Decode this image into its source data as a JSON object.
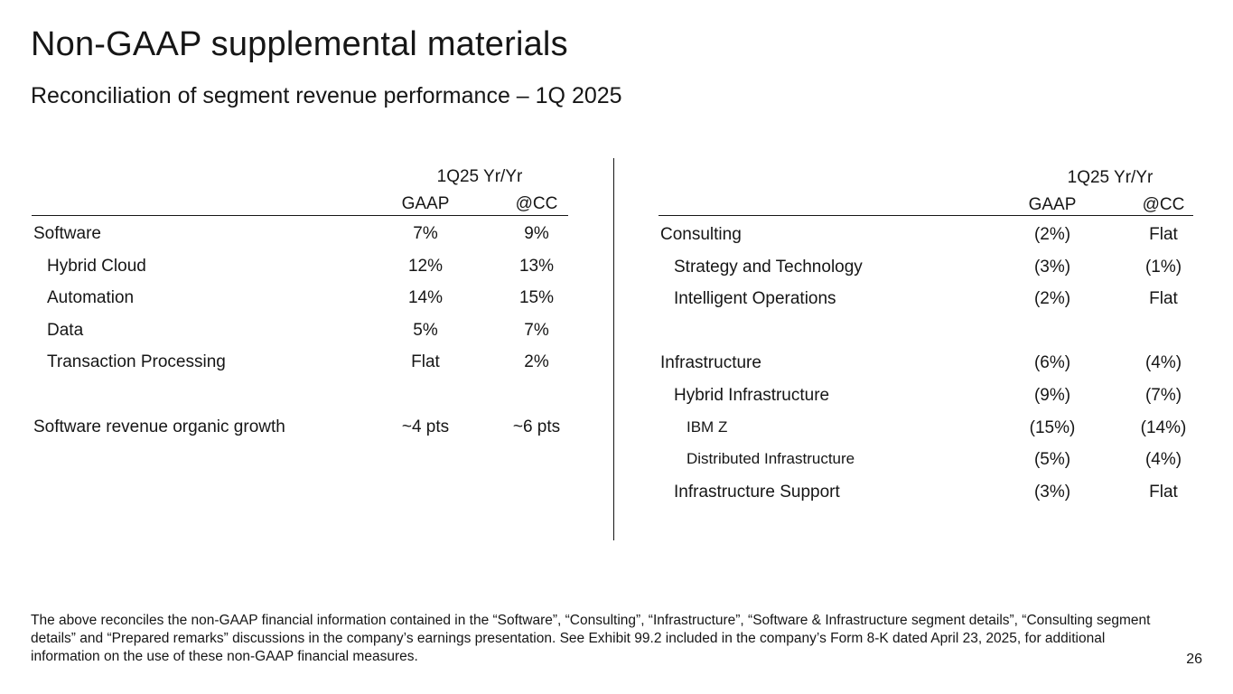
{
  "title": "Non-GAAP supplemental materials",
  "subtitle": "Reconciliation of segment revenue performance – 1Q 2025",
  "left_table": {
    "header_group": "1Q25 Yr/Yr",
    "col1": "GAAP",
    "col2": "@CC",
    "rows": [
      {
        "label": "Software",
        "gaap": "7%",
        "cc": "9%"
      },
      {
        "label": "Hybrid Cloud",
        "gaap": "12%",
        "cc": "13%"
      },
      {
        "label": "Automation",
        "gaap": "14%",
        "cc": "15%"
      },
      {
        "label": "Data",
        "gaap": "5%",
        "cc": "7%"
      },
      {
        "label": "Transaction Processing",
        "gaap": "Flat",
        "cc": "2%"
      },
      {
        "label": "Software revenue organic growth",
        "gaap": "~4 pts",
        "cc": "~6 pts"
      }
    ]
  },
  "right_table": {
    "header_group": "1Q25 Yr/Yr",
    "col1": "GAAP",
    "col2": "@CC",
    "rows": [
      {
        "label": "Consulting",
        "gaap": "(2%)",
        "cc": "Flat"
      },
      {
        "label": "Strategy and Technology",
        "gaap": "(3%)",
        "cc": "(1%)"
      },
      {
        "label": "Intelligent Operations",
        "gaap": "(2%)",
        "cc": "Flat"
      },
      {
        "label": "Infrastructure",
        "gaap": "(6%)",
        "cc": "(4%)"
      },
      {
        "label": "Hybrid Infrastructure",
        "gaap": "(9%)",
        "cc": "(7%)"
      },
      {
        "label": "IBM Z",
        "gaap": "(15%)",
        "cc": "(14%)"
      },
      {
        "label": "Distributed Infrastructure",
        "gaap": "(5%)",
        "cc": "(4%)"
      },
      {
        "label": "Infrastructure Support",
        "gaap": "(3%)",
        "cc": "Flat"
      }
    ]
  },
  "footnote": "The above reconciles the non-GAAP financial information contained in the “Software”, “Consulting”, “Infrastructure”, “Software & Infrastructure segment details”, “Consulting segment details” and “Prepared remarks” discussions in the company’s earnings presentation. See Exhibit 99.2 included in the company’s Form 8-K dated April 23, 2025, for additional information on the use of these non-GAAP financial measures.",
  "page_number": "26"
}
